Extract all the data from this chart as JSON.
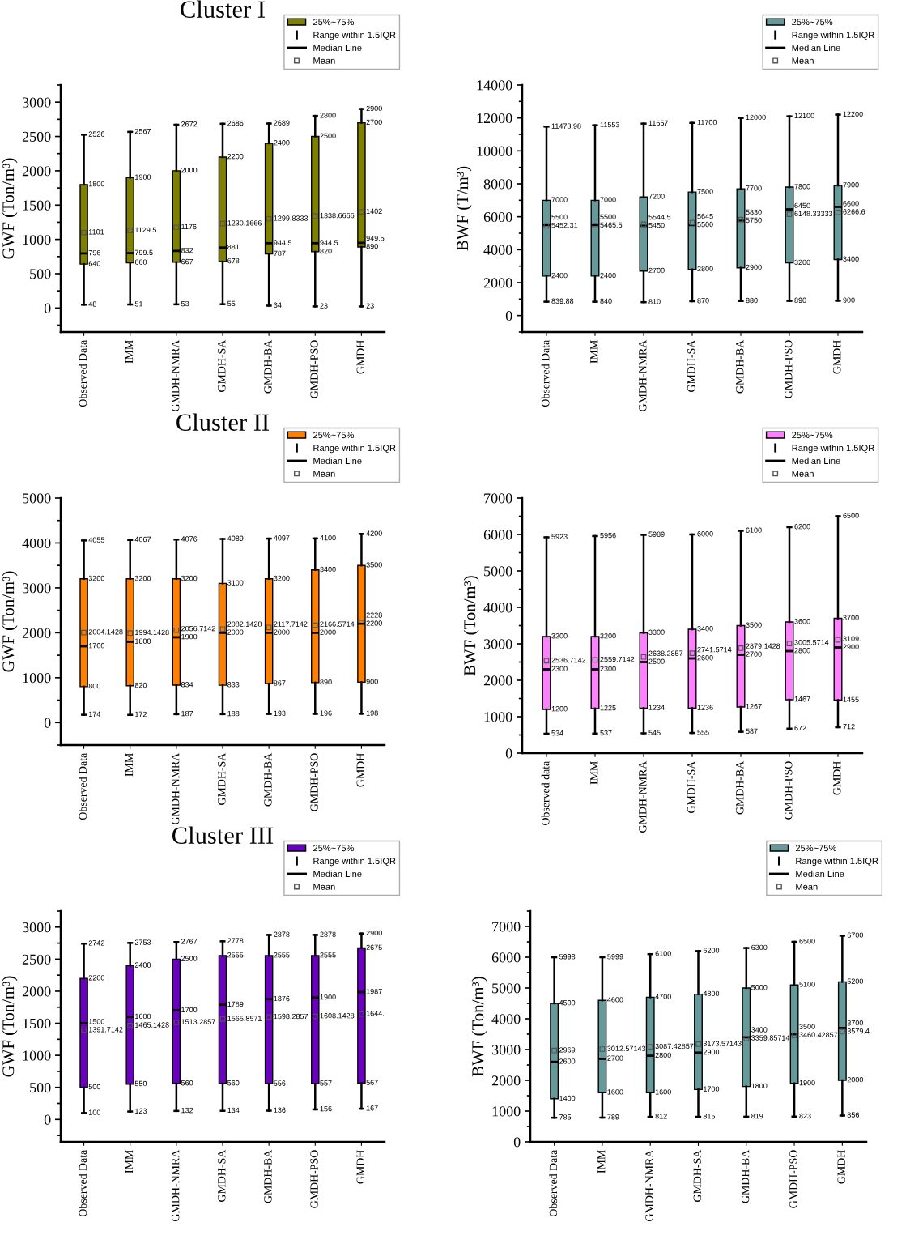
{
  "chart_data": [
    {
      "type": "box",
      "title": "Cluster I",
      "ylabel": "GWF (Ton/m³)",
      "categories": [
        "Observed Data",
        "IMM",
        "GMDH-NMRA",
        "GMDH-SA",
        "GMDH-BA",
        "GMDH-PSO",
        "GMDH"
      ],
      "ylim": [
        -350,
        3250
      ],
      "yticks": [
        0,
        500,
        1000,
        1500,
        2000,
        2500,
        3000
      ],
      "legend": "top right",
      "data_labels": true,
      "series": [
        {
          "name": "25%~75%",
          "color": "#808000",
          "boxes": [
            {
              "low": 48,
              "q1": 640,
              "median": 796,
              "q3": 1800,
              "high": 2526,
              "mean": 1101
            },
            {
              "low": 51,
              "q1": 660,
              "median": 799.5,
              "q3": 1900,
              "high": 2567,
              "mean": 1129.5
            },
            {
              "low": 53,
              "q1": 667,
              "median": 832,
              "q3": 2000,
              "high": 2672,
              "mean": 1176
            },
            {
              "low": 55,
              "q1": 678,
              "median": 881,
              "q3": 2200,
              "high": 2686,
              "mean": 1230.1666
            },
            {
              "low": 34,
              "q1": 787,
              "median": 944.5,
              "q3": 2400,
              "high": 2689,
              "mean": 1299.8333
            },
            {
              "low": 23,
              "q1": 820,
              "median": 944.5,
              "q3": 2500,
              "high": 2800,
              "mean": 1338.6666
            },
            {
              "low": 23,
              "q1": 890,
              "median": 949.5,
              "q3": 2700,
              "high": 2900,
              "mean": 1402
            }
          ]
        }
      ],
      "annotations": [
        "Range within 1.5IQR",
        "Median Line",
        "Mean",
        {
          "text": "48",
          "x": "Observed Data",
          "y": 48
        },
        {
          "text": "640",
          "x": "Observed Data",
          "y": 640
        },
        {
          "text": "796",
          "x": "Observed Data",
          "y": 796
        },
        {
          "text": "1101",
          "x": "Observed Data",
          "y": 1101
        },
        {
          "text": "1800",
          "x": "Observed Data",
          "y": 1800
        },
        {
          "text": "2526",
          "x": "Observed Data",
          "y": 2526
        },
        {
          "text": "51",
          "x": "IMM",
          "y": 51
        },
        {
          "text": "660",
          "x": "IMM",
          "y": 660
        },
        {
          "text": "799.5",
          "x": "IMM",
          "y": 799.5
        },
        {
          "text": "1129.5",
          "x": "IMM",
          "y": 1129.5
        },
        {
          "text": "1900",
          "x": "IMM",
          "y": 1900
        },
        {
          "text": "2567",
          "x": "IMM",
          "y": 2567
        },
        {
          "text": "53",
          "x": "GMDH-NMRA",
          "y": 53
        },
        {
          "text": "667",
          "x": "GMDH-NMRA",
          "y": 667
        },
        {
          "text": "832",
          "x": "GMDH-NMRA",
          "y": 832
        },
        {
          "text": "1176",
          "x": "GMDH-NMRA",
          "y": 1176
        },
        {
          "text": "2000",
          "x": "GMDH-NMRA",
          "y": 2000
        },
        {
          "text": "2672",
          "x": "GMDH-NMRA",
          "y": 2672
        },
        {
          "text": "55",
          "x": "GMDH-SA",
          "y": 55
        },
        {
          "text": "678",
          "x": "GMDH-SA",
          "y": 678
        },
        {
          "text": "881",
          "x": "GMDH-SA",
          "y": 881
        },
        {
          "text": "1230.1666",
          "x": "GMDH-SA",
          "y": 1230.1666
        },
        {
          "text": "2200",
          "x": "GMDH-SA",
          "y": 2200
        },
        {
          "text": "2686",
          "x": "GMDH-SA",
          "y": 2686
        },
        {
          "text": "34",
          "x": "GMDH-BA",
          "y": 34
        },
        {
          "text": "787",
          "x": "GMDH-BA",
          "y": 787
        },
        {
          "text": "944.5",
          "x": "GMDH-BA",
          "y": 944.5
        },
        {
          "text": "1299.8333",
          "x": "GMDH-BA",
          "y": 1299.8333
        },
        {
          "text": "2400",
          "x": "GMDH-BA",
          "y": 2400
        },
        {
          "text": "2689",
          "x": "GMDH-BA",
          "y": 2689
        },
        {
          "text": "23",
          "x": "GMDH-PSO",
          "y": 23
        },
        {
          "text": "820",
          "x": "GMDH-PSO",
          "y": 820
        },
        {
          "text": "944.5",
          "x": "GMDH-PSO",
          "y": 944.5
        },
        {
          "text": "1338.6666",
          "x": "GMDH-PSO",
          "y": 1338.6666
        },
        {
          "text": "2500",
          "x": "GMDH-PSO",
          "y": 2500
        },
        {
          "text": "2800",
          "x": "GMDH-PSO",
          "y": 2800
        },
        {
          "text": "23",
          "x": "GMDH",
          "y": 23
        },
        {
          "text": "890",
          "x": "GMDH",
          "y": 890
        },
        {
          "text": "949.5",
          "x": "GMDH",
          "y": 949.5
        },
        {
          "text": "1402",
          "x": "GMDH",
          "y": 1402
        },
        {
          "text": "2700",
          "x": "GMDH",
          "y": 2700
        },
        {
          "text": "2900",
          "x": "GMDH",
          "y": 2900
        }
      ]
    },
    {
      "type": "box",
      "ylabel": "BWF (T/m³)",
      "categories": [
        "Observed Data",
        "IMM",
        "GMDH-NMRA",
        "GMDH-SA",
        "GMDH-BA",
        "GMDH-PSO",
        "GMDH"
      ],
      "ylim": [
        -1000,
        14000
      ],
      "yticks": [
        0,
        2000,
        4000,
        6000,
        8000,
        10000,
        12000,
        14000
      ],
      "legend": "top right",
      "data_labels": true,
      "series": [
        {
          "name": "25%~75%",
          "color": "#669999",
          "boxes": [
            {
              "low": 839.88,
              "q1": 2400,
              "median": 5500,
              "q3": 7000,
              "high": 11473.98,
              "mean": 5452.31
            },
            {
              "low": 840,
              "q1": 2400,
              "median": 5500,
              "q3": 7000,
              "high": 11553,
              "mean": 5465.5
            },
            {
              "low": 810,
              "q1": 2700,
              "median": 5450,
              "q3": 7200,
              "high": 11657,
              "mean": 5544.5
            },
            {
              "low": 870,
              "q1": 2800,
              "median": 5500,
              "q3": 7500,
              "high": 11700,
              "mean": 5645
            },
            {
              "low": 880,
              "q1": 2900,
              "median": 5750,
              "q3": 7700,
              "high": 12000,
              "mean": 5830
            },
            {
              "low": 890,
              "q1": 3200,
              "median": 6450,
              "q3": 7800,
              "high": 12100,
              "mean": 6148.33333
            },
            {
              "low": 900,
              "q1": 3400,
              "median": 6600,
              "q3": 7900,
              "high": 12200,
              "mean": 6266.6
            }
          ]
        }
      ],
      "annotations": [
        "Range within 1.5IQR",
        "Median Line",
        "Mean",
        {
          "text": "839.88",
          "x": "Observed Data",
          "y": 839.88
        },
        {
          "text": "2400",
          "x": "Observed Data",
          "y": 2400
        },
        {
          "text": "5452.31",
          "x": "Observed Data",
          "y": 5452.31
        },
        {
          "text": "5500",
          "x": "Observed Data",
          "y": 5500
        },
        {
          "text": "7000",
          "x": "Observed Data",
          "y": 7000
        },
        {
          "text": "11473.98",
          "x": "Observed Data",
          "y": 11473.98
        },
        {
          "text": "840",
          "x": "IMM",
          "y": 840
        },
        {
          "text": "2400",
          "x": "IMM",
          "y": 2400
        },
        {
          "text": "5465.5",
          "x": "IMM",
          "y": 5465.5
        },
        {
          "text": "5500",
          "x": "IMM",
          "y": 5500
        },
        {
          "text": "7000",
          "x": "IMM",
          "y": 7000
        },
        {
          "text": "11553",
          "x": "IMM",
          "y": 11553
        },
        {
          "text": "810",
          "x": "GMDH-NMRA",
          "y": 810
        },
        {
          "text": "2700",
          "x": "GMDH-NMRA",
          "y": 2700
        },
        {
          "text": "5450",
          "x": "GMDH-NMRA",
          "y": 5450
        },
        {
          "text": "5544.5",
          "x": "GMDH-NMRA",
          "y": 5544.5
        },
        {
          "text": "7200",
          "x": "GMDH-NMRA",
          "y": 7200
        },
        {
          "text": "11657",
          "x": "GMDH-NMRA",
          "y": 11657
        },
        {
          "text": "870",
          "x": "GMDH-SA",
          "y": 870
        },
        {
          "text": "2800",
          "x": "GMDH-SA",
          "y": 2800
        },
        {
          "text": "5500",
          "x": "GMDH-SA",
          "y": 5500
        },
        {
          "text": "5645",
          "x": "GMDH-SA",
          "y": 5645
        },
        {
          "text": "7500",
          "x": "GMDH-SA",
          "y": 7500
        },
        {
          "text": "11700",
          "x": "GMDH-SA",
          "y": 11700
        },
        {
          "text": "880",
          "x": "GMDH-BA",
          "y": 880
        },
        {
          "text": "2900",
          "x": "GMDH-BA",
          "y": 2900
        },
        {
          "text": "5750",
          "x": "GMDH-BA",
          "y": 5750
        },
        {
          "text": "5830",
          "x": "GMDH-BA",
          "y": 5830
        },
        {
          "text": "7700",
          "x": "GMDH-BA",
          "y": 7700
        },
        {
          "text": "12000",
          "x": "GMDH-BA",
          "y": 12000
        },
        {
          "text": "890",
          "x": "GMDH-PSO",
          "y": 890
        },
        {
          "text": "3200",
          "x": "GMDH-PSO",
          "y": 3200
        },
        {
          "text": "6148.33333",
          "x": "GMDH-PSO",
          "y": 6148.33333
        },
        {
          "text": "6450",
          "x": "GMDH-PSO",
          "y": 6450
        },
        {
          "text": "7800",
          "x": "GMDH-PSO",
          "y": 7800
        },
        {
          "text": "12100",
          "x": "GMDH-PSO",
          "y": 12100
        },
        {
          "text": "900",
          "x": "GMDH",
          "y": 900
        },
        {
          "text": "3400",
          "x": "GMDH",
          "y": 3400
        },
        {
          "text": "6266.6",
          "x": "GMDH",
          "y": 6266.6
        },
        {
          "text": "6600",
          "x": "GMDH",
          "y": 6600
        },
        {
          "text": "7900",
          "x": "GMDH",
          "y": 7900
        },
        {
          "text": "12200",
          "x": "GMDH",
          "y": 12200
        }
      ]
    },
    {
      "type": "box",
      "title": "Cluster II",
      "ylabel": "GWF (Ton/m³)",
      "categories": [
        "Observed Data",
        "IMM",
        "GMDH-NMRA",
        "GMDH-SA",
        "GMDH-BA",
        "GMDH-PSO",
        "GMDH"
      ],
      "ylim": [
        -500,
        5000
      ],
      "yticks": [
        0,
        1000,
        2000,
        3000,
        4000,
        5000
      ],
      "legend": "top right",
      "data_labels": true,
      "series": [
        {
          "name": "25%~75%",
          "color": "#ff8000",
          "boxes": [
            {
              "low": 174,
              "q1": 800,
              "median": 1700,
              "q3": 3200,
              "high": 4055,
              "mean": 2004.1428
            },
            {
              "low": 172,
              "q1": 820,
              "median": 1800,
              "q3": 3200,
              "high": 4067,
              "mean": 1994.1428
            },
            {
              "low": 187,
              "q1": 834,
              "median": 1900,
              "q3": 3200,
              "high": 4076,
              "mean": 2056.7142
            },
            {
              "low": 188,
              "q1": 833,
              "median": 2000,
              "q3": 3100,
              "high": 4089,
              "mean": 2082.1428
            },
            {
              "low": 193,
              "q1": 867,
              "median": 2000,
              "q3": 3200,
              "high": 4097,
              "mean": 2117.7142
            },
            {
              "low": 196,
              "q1": 890,
              "median": 2000,
              "q3": 3400,
              "high": 4100,
              "mean": 2166.5714
            },
            {
              "low": 198,
              "q1": 900,
              "median": 2200,
              "q3": 3500,
              "high": 4200,
              "mean": 2228
            }
          ]
        }
      ],
      "annotations": [
        "Range within 1.5IQR",
        "Median Line",
        "Mean",
        {
          "text": "174",
          "x": "Observed Data",
          "y": 174
        },
        {
          "text": "800",
          "x": "Observed Data",
          "y": 800
        },
        {
          "text": "1700",
          "x": "Observed Data",
          "y": 1700
        },
        {
          "text": "2004.1428",
          "x": "Observed Data",
          "y": 2004.1428
        },
        {
          "text": "3200",
          "x": "Observed Data",
          "y": 3200
        },
        {
          "text": "4055",
          "x": "Observed Data",
          "y": 4055
        },
        {
          "text": "172",
          "x": "IMM",
          "y": 172
        },
        {
          "text": "820",
          "x": "IMM",
          "y": 820
        },
        {
          "text": "1800",
          "x": "IMM",
          "y": 1800
        },
        {
          "text": "1994.1428",
          "x": "IMM",
          "y": 1994.1428
        },
        {
          "text": "3200",
          "x": "IMM",
          "y": 3200
        },
        {
          "text": "4067",
          "x": "IMM",
          "y": 4067
        },
        {
          "text": "187",
          "x": "GMDH-NMRA",
          "y": 187
        },
        {
          "text": "834",
          "x": "GMDH-NMRA",
          "y": 834
        },
        {
          "text": "1900",
          "x": "GMDH-NMRA",
          "y": 1900
        },
        {
          "text": "2056.7142",
          "x": "GMDH-NMRA",
          "y": 2056.7142
        },
        {
          "text": "3200",
          "x": "GMDH-NMRA",
          "y": 3200
        },
        {
          "text": "4076",
          "x": "GMDH-NMRA",
          "y": 4076
        },
        {
          "text": "188",
          "x": "GMDH-SA",
          "y": 188
        },
        {
          "text": "833",
          "x": "GMDH-SA",
          "y": 833
        },
        {
          "text": "2000",
          "x": "GMDH-SA",
          "y": 2000
        },
        {
          "text": "2082.1428",
          "x": "GMDH-SA",
          "y": 2082.1428
        },
        {
          "text": "3100",
          "x": "GMDH-SA",
          "y": 3100
        },
        {
          "text": "4089",
          "x": "GMDH-SA",
          "y": 4089
        },
        {
          "text": "193",
          "x": "GMDH-BA",
          "y": 193
        },
        {
          "text": "867",
          "x": "GMDH-BA",
          "y": 867
        },
        {
          "text": "2000",
          "x": "GMDH-BA",
          "y": 2000
        },
        {
          "text": "2117.7142",
          "x": "GMDH-BA",
          "y": 2117.7142
        },
        {
          "text": "3200",
          "x": "GMDH-BA",
          "y": 3200
        },
        {
          "text": "4097",
          "x": "GMDH-BA",
          "y": 4097
        },
        {
          "text": "196",
          "x": "GMDH-PSO",
          "y": 196
        },
        {
          "text": "890",
          "x": "GMDH-PSO",
          "y": 890
        },
        {
          "text": "2000",
          "x": "GMDH-PSO",
          "y": 2000
        },
        {
          "text": "2166.5714",
          "x": "GMDH-PSO",
          "y": 2166.5714
        },
        {
          "text": "3400",
          "x": "GMDH-PSO",
          "y": 3400
        },
        {
          "text": "4100",
          "x": "GMDH-PSO",
          "y": 4100
        },
        {
          "text": "198",
          "x": "GMDH",
          "y": 198
        },
        {
          "text": "900",
          "x": "GMDH",
          "y": 900
        },
        {
          "text": "2200",
          "x": "GMDH",
          "y": 2200
        },
        {
          "text": "2228",
          "x": "GMDH",
          "y": 2228
        },
        {
          "text": "3500",
          "x": "GMDH",
          "y": 3500
        },
        {
          "text": "4200",
          "x": "GMDH",
          "y": 4200
        }
      ]
    },
    {
      "type": "box",
      "ylabel": "BWF (Ton/m³)",
      "categories": [
        "Observed data",
        "IMM",
        "GMDH-NMRA",
        "GMDH-SA",
        "GMDH-BA",
        "GMDH-PSO",
        "GMDH"
      ],
      "ylim": [
        0,
        7000
      ],
      "yticks": [
        0,
        1000,
        2000,
        3000,
        4000,
        5000,
        6000,
        7000
      ],
      "legend": "top right",
      "data_labels": true,
      "series": [
        {
          "name": "25%~75%",
          "color": "#ff80ff",
          "boxes": [
            {
              "low": 534,
              "q1": 1200,
              "median": 2300,
              "q3": 3200,
              "high": 5923,
              "mean": 2536.7142
            },
            {
              "low": 537,
              "q1": 1225,
              "median": 2300,
              "q3": 3200,
              "high": 5956,
              "mean": 2559.7142
            },
            {
              "low": 545,
              "q1": 1234,
              "median": 2500,
              "q3": 3300,
              "high": 5989,
              "mean": 2638.2857
            },
            {
              "low": 555,
              "q1": 1236,
              "median": 2600,
              "q3": 3400,
              "high": 6000,
              "mean": 2741.5714
            },
            {
              "low": 587,
              "q1": 1267,
              "median": 2700,
              "q3": 3500,
              "high": 6100,
              "mean": 2879.1428
            },
            {
              "low": 672,
              "q1": 1467,
              "median": 2800,
              "q3": 3600,
              "high": 6200,
              "mean": 3005.5714
            },
            {
              "low": 712,
              "q1": 1455,
              "median": 2900,
              "q3": 3700,
              "high": 6500,
              "mean": 3109
            }
          ]
        }
      ],
      "annotations": [
        "Range within 1.5IQR",
        "Median Line",
        "Mean",
        {
          "text": "534",
          "x": "Observed data",
          "y": 534
        },
        {
          "text": "1200",
          "x": "Observed data",
          "y": 1200
        },
        {
          "text": "2300",
          "x": "Observed data",
          "y": 2300
        },
        {
          "text": "2536.7142",
          "x": "Observed data",
          "y": 2536.7142
        },
        {
          "text": "3200",
          "x": "Observed data",
          "y": 3200
        },
        {
          "text": "5923",
          "x": "Observed data",
          "y": 5923
        },
        {
          "text": "537",
          "x": "IMM",
          "y": 537
        },
        {
          "text": "1225",
          "x": "IMM",
          "y": 1225
        },
        {
          "text": "2300",
          "x": "IMM",
          "y": 2300
        },
        {
          "text": "2559.7142",
          "x": "IMM",
          "y": 2559.7142
        },
        {
          "text": "3200",
          "x": "IMM",
          "y": 3200
        },
        {
          "text": "5956",
          "x": "IMM",
          "y": 5956
        },
        {
          "text": "545",
          "x": "GMDH-NMRA",
          "y": 545
        },
        {
          "text": "1234",
          "x": "GMDH-NMRA",
          "y": 1234
        },
        {
          "text": "2500",
          "x": "GMDH-NMRA",
          "y": 2500
        },
        {
          "text": "2638.2857",
          "x": "GMDH-NMRA",
          "y": 2638.2857
        },
        {
          "text": "3300",
          "x": "GMDH-NMRA",
          "y": 3300
        },
        {
          "text": "5989",
          "x": "GMDH-NMRA",
          "y": 5989
        },
        {
          "text": "555",
          "x": "GMDH-SA",
          "y": 555
        },
        {
          "text": "1236",
          "x": "GMDH-SA",
          "y": 1236
        },
        {
          "text": "2600",
          "x": "GMDH-SA",
          "y": 2600
        },
        {
          "text": "2741.5714",
          "x": "GMDH-SA",
          "y": 2741.5714
        },
        {
          "text": "3400",
          "x": "GMDH-SA",
          "y": 3400
        },
        {
          "text": "6000",
          "x": "GMDH-SA",
          "y": 6000
        },
        {
          "text": "587",
          "x": "GMDH-BA",
          "y": 587
        },
        {
          "text": "1267",
          "x": "GMDH-BA",
          "y": 1267
        },
        {
          "text": "2700",
          "x": "GMDH-BA",
          "y": 2700
        },
        {
          "text": "2879.1428",
          "x": "GMDH-BA",
          "y": 2879.1428
        },
        {
          "text": "3500",
          "x": "GMDH-BA",
          "y": 3500
        },
        {
          "text": "6100",
          "x": "GMDH-BA",
          "y": 6100
        },
        {
          "text": "672",
          "x": "GMDH-PSO",
          "y": 672
        },
        {
          "text": "1467",
          "x": "GMDH-PSO",
          "y": 1467
        },
        {
          "text": "2800",
          "x": "GMDH-PSO",
          "y": 2800
        },
        {
          "text": "3005.5714",
          "x": "GMDH-PSO",
          "y": 3005.5714
        },
        {
          "text": "3600",
          "x": "GMDH-PSO",
          "y": 3600
        },
        {
          "text": "6200",
          "x": "GMDH-PSO",
          "y": 6200
        },
        {
          "text": "712",
          "x": "GMDH",
          "y": 712
        },
        {
          "text": "1455",
          "x": "GMDH",
          "y": 1455
        },
        {
          "text": "2900",
          "x": "GMDH",
          "y": 2900
        },
        {
          "text": "3109.",
          "x": "GMDH",
          "y": 3109
        },
        {
          "text": "3700",
          "x": "GMDH",
          "y": 3700
        },
        {
          "text": "6500",
          "x": "GMDH",
          "y": 6500
        }
      ]
    },
    {
      "type": "box",
      "title": "Cluster III",
      "ylabel": "GWF (Ton/m³)",
      "categories": [
        "Observed Data",
        "IMM",
        "GMDH-NMRA",
        "GMDH-SA",
        "GMDH-BA",
        "GMDH-PSO",
        "GMDH"
      ],
      "ylim": [
        -350,
        3250
      ],
      "yticks": [
        0,
        500,
        1000,
        1500,
        2000,
        2500,
        3000
      ],
      "legend": "top right",
      "data_labels": true,
      "series": [
        {
          "name": "25%~75%",
          "color": "#6a00c0",
          "boxes": [
            {
              "low": 100,
              "q1": 500,
              "median": 1500,
              "q3": 2200,
              "high": 2742,
              "mean": 1391.7142
            },
            {
              "low": 123,
              "q1": 550,
              "median": 1600,
              "q3": 2400,
              "high": 2753,
              "mean": 1465.1428
            },
            {
              "low": 132,
              "q1": 560,
              "median": 1700,
              "q3": 2500,
              "high": 2767,
              "mean": 1513.2857
            },
            {
              "low": 134,
              "q1": 560,
              "median": 1789,
              "q3": 2555,
              "high": 2778,
              "mean": 1565.8571
            },
            {
              "low": 136,
              "q1": 556,
              "median": 1876,
              "q3": 2555,
              "high": 2878,
              "mean": 1598.2857
            },
            {
              "low": 156,
              "q1": 557,
              "median": 1900,
              "q3": 2555,
              "high": 2878,
              "mean": 1608.1428
            },
            {
              "low": 167,
              "q1": 567,
              "median": 1987,
              "q3": 2675,
              "high": 2900,
              "mean": 1644
            }
          ]
        }
      ],
      "annotations": [
        "Range within 1.5IQR",
        "Median Line",
        "Mean",
        {
          "text": "100",
          "x": "Observed Data",
          "y": 100
        },
        {
          "text": "500",
          "x": "Observed Data",
          "y": 500
        },
        {
          "text": "1391.7142",
          "x": "Observed Data",
          "y": 1391.7142
        },
        {
          "text": "1500",
          "x": "Observed Data",
          "y": 1500
        },
        {
          "text": "2200",
          "x": "Observed Data",
          "y": 2200
        },
        {
          "text": "2742",
          "x": "Observed Data",
          "y": 2742
        },
        {
          "text": "123",
          "x": "IMM",
          "y": 123
        },
        {
          "text": "550",
          "x": "IMM",
          "y": 550
        },
        {
          "text": "1465.1428",
          "x": "IMM",
          "y": 1465.1428
        },
        {
          "text": "1600",
          "x": "IMM",
          "y": 1600
        },
        {
          "text": "2400",
          "x": "IMM",
          "y": 2400
        },
        {
          "text": "2753",
          "x": "IMM",
          "y": 2753
        },
        {
          "text": "132",
          "x": "GMDH-NMRA",
          "y": 132
        },
        {
          "text": "560",
          "x": "GMDH-NMRA",
          "y": 560
        },
        {
          "text": "1513.2857",
          "x": "GMDH-NMRA",
          "y": 1513.2857
        },
        {
          "text": "1700",
          "x": "GMDH-NMRA",
          "y": 1700
        },
        {
          "text": "2500",
          "x": "GMDH-NMRA",
          "y": 2500
        },
        {
          "text": "2767",
          "x": "GMDH-NMRA",
          "y": 2767
        },
        {
          "text": "134",
          "x": "GMDH-SA",
          "y": 134
        },
        {
          "text": "560",
          "x": "GMDH-SA",
          "y": 560
        },
        {
          "text": "1565.8571",
          "x": "GMDH-SA",
          "y": 1565.8571
        },
        {
          "text": "1789",
          "x": "GMDH-SA",
          "y": 1789
        },
        {
          "text": "2555",
          "x": "GMDH-SA",
          "y": 2555
        },
        {
          "text": "2778",
          "x": "GMDH-SA",
          "y": 2778
        },
        {
          "text": "136",
          "x": "GMDH-BA",
          "y": 136
        },
        {
          "text": "556",
          "x": "GMDH-BA",
          "y": 556
        },
        {
          "text": "1598.2857",
          "x": "GMDH-BA",
          "y": 1598.2857
        },
        {
          "text": "1876",
          "x": "GMDH-BA",
          "y": 1876
        },
        {
          "text": "2555",
          "x": "GMDH-BA",
          "y": 2555
        },
        {
          "text": "2878",
          "x": "GMDH-BA",
          "y": 2878
        },
        {
          "text": "156",
          "x": "GMDH-PSO",
          "y": 156
        },
        {
          "text": "557",
          "x": "GMDH-PSO",
          "y": 557
        },
        {
          "text": "1608.1428",
          "x": "GMDH-PSO",
          "y": 1608.1428
        },
        {
          "text": "1900",
          "x": "GMDH-PSO",
          "y": 1900
        },
        {
          "text": "2555",
          "x": "GMDH-PSO",
          "y": 2555
        },
        {
          "text": "2878",
          "x": "GMDH-PSO",
          "y": 2878
        },
        {
          "text": "167",
          "x": "GMDH",
          "y": 167
        },
        {
          "text": "567",
          "x": "GMDH",
          "y": 567
        },
        {
          "text": "1644.",
          "x": "GMDH",
          "y": 1644
        },
        {
          "text": "1987",
          "x": "GMDH",
          "y": 1987
        },
        {
          "text": "2675",
          "x": "GMDH",
          "y": 2675
        },
        {
          "text": "2900",
          "x": "GMDH",
          "y": 2900
        }
      ]
    },
    {
      "type": "box",
      "ylabel": "BWF (Ton/m³)",
      "categories": [
        "Observed Data",
        "IMM",
        "GMDH-NMRA",
        "GMDH-SA",
        "GMDH-BA",
        "GMDH-PSO",
        "GMDH"
      ],
      "ylim": [
        0,
        7500
      ],
      "yticks": [
        0,
        1000,
        2000,
        3000,
        4000,
        5000,
        6000,
        7000
      ],
      "legend": "top right",
      "data_labels": true,
      "series": [
        {
          "name": "25%~75%",
          "color": "#669999",
          "boxes": [
            {
              "low": 785,
              "q1": 1400,
              "median": 2600,
              "q3": 4500,
              "high": 5998,
              "mean": 2969
            },
            {
              "low": 789,
              "q1": 1600,
              "median": 2700,
              "q3": 4600,
              "high": 5999,
              "mean": 3012.57143
            },
            {
              "low": 812,
              "q1": 1600,
              "median": 2800,
              "q3": 4700,
              "high": 6100,
              "mean": 3087.42857
            },
            {
              "low": 815,
              "q1": 1700,
              "median": 2900,
              "q3": 4800,
              "high": 6200,
              "mean": 3173.57143
            },
            {
              "low": 819,
              "q1": 1800,
              "median": 3400,
              "q3": 5000,
              "high": 6300,
              "mean": 3359.85714
            },
            {
              "low": 823,
              "q1": 1900,
              "median": 3500,
              "q3": 5100,
              "high": 6500,
              "mean": 3460.42857
            },
            {
              "low": 856,
              "q1": 2000,
              "median": 3700,
              "q3": 5200,
              "high": 6700,
              "mean": 3579.4
            }
          ]
        }
      ],
      "annotations": [
        "Range within 1.5IQR",
        "Median Line",
        "Mean",
        {
          "text": "785",
          "x": "Observed Data",
          "y": 785
        },
        {
          "text": "1400",
          "x": "Observed Data",
          "y": 1400
        },
        {
          "text": "2600",
          "x": "Observed Data",
          "y": 2600
        },
        {
          "text": "2969",
          "x": "Observed Data",
          "y": 2969
        },
        {
          "text": "4500",
          "x": "Observed Data",
          "y": 4500
        },
        {
          "text": "5998",
          "x": "Observed Data",
          "y": 5998
        },
        {
          "text": "789",
          "x": "IMM",
          "y": 789
        },
        {
          "text": "1600",
          "x": "IMM",
          "y": 1600
        },
        {
          "text": "2700",
          "x": "IMM",
          "y": 2700
        },
        {
          "text": "3012.57143",
          "x": "IMM",
          "y": 3012.57143
        },
        {
          "text": "4600",
          "x": "IMM",
          "y": 4600
        },
        {
          "text": "5999",
          "x": "IMM",
          "y": 5999
        },
        {
          "text": "812",
          "x": "GMDH-NMRA",
          "y": 812
        },
        {
          "text": "1600",
          "x": "GMDH-NMRA",
          "y": 1600
        },
        {
          "text": "2800",
          "x": "GMDH-NMRA",
          "y": 2800
        },
        {
          "text": "3087.42857",
          "x": "GMDH-NMRA",
          "y": 3087.42857
        },
        {
          "text": "4700",
          "x": "GMDH-NMRA",
          "y": 4700
        },
        {
          "text": "6100",
          "x": "GMDH-NMRA",
          "y": 6100
        },
        {
          "text": "815",
          "x": "GMDH-SA",
          "y": 815
        },
        {
          "text": "1700",
          "x": "GMDH-SA",
          "y": 1700
        },
        {
          "text": "2900",
          "x": "GMDH-SA",
          "y": 2900
        },
        {
          "text": "3173.57143",
          "x": "GMDH-SA",
          "y": 3173.57143
        },
        {
          "text": "4800",
          "x": "GMDH-SA",
          "y": 4800
        },
        {
          "text": "6200",
          "x": "GMDH-SA",
          "y": 6200
        },
        {
          "text": "819",
          "x": "GMDH-BA",
          "y": 819
        },
        {
          "text": "1800",
          "x": "GMDH-BA",
          "y": 1800
        },
        {
          "text": "3359.85714",
          "x": "GMDH-BA",
          "y": 3359.85714
        },
        {
          "text": "3400",
          "x": "GMDH-BA",
          "y": 3400
        },
        {
          "text": "5000",
          "x": "GMDH-BA",
          "y": 5000
        },
        {
          "text": "6300",
          "x": "GMDH-BA",
          "y": 6300
        },
        {
          "text": "823",
          "x": "GMDH-PSO",
          "y": 823
        },
        {
          "text": "1900",
          "x": "GMDH-PSO",
          "y": 1900
        },
        {
          "text": "3460.42857",
          "x": "GMDH-PSO",
          "y": 3460.42857
        },
        {
          "text": "3500",
          "x": "GMDH-PSO",
          "y": 3500
        },
        {
          "text": "5100",
          "x": "GMDH-PSO",
          "y": 5100
        },
        {
          "text": "6500",
          "x": "GMDH-PSO",
          "y": 6500
        },
        {
          "text": "856",
          "x": "GMDH",
          "y": 856
        },
        {
          "text": "2000",
          "x": "GMDH",
          "y": 2000
        },
        {
          "text": "3579.4",
          "x": "GMDH",
          "y": 3579.4
        },
        {
          "text": "3700",
          "x": "GMDH",
          "y": 3700
        },
        {
          "text": "5200",
          "x": "GMDH",
          "y": 5200
        },
        {
          "text": "6700",
          "x": "GMDH",
          "y": 6700
        }
      ]
    }
  ]
}
